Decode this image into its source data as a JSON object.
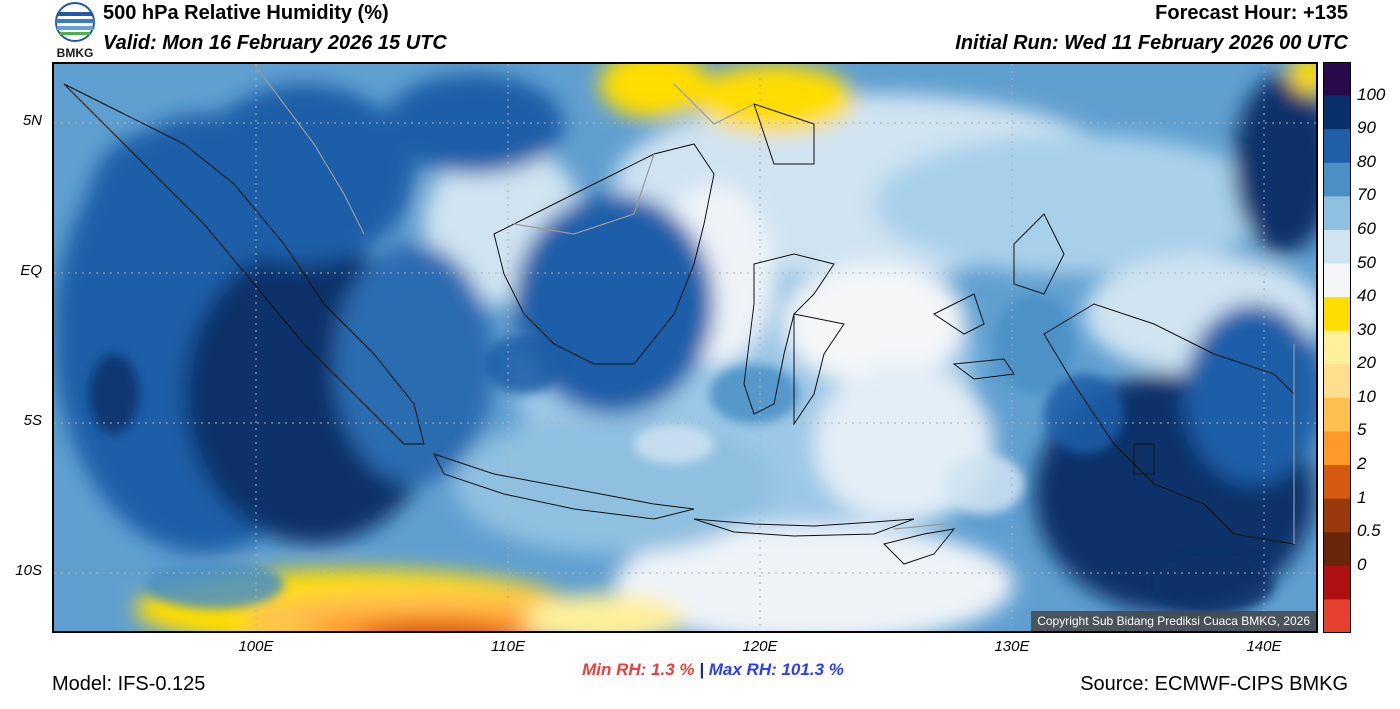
{
  "header": {
    "logo_text": "BMKG",
    "title": "500 hPa Relative Humidity (%)",
    "valid": "Valid: Mon 16 February 2026 15 UTC",
    "forecast_hour": "Forecast Hour: +135",
    "initial_run": "Initial Run: Wed 11 February 2026 00 UTC"
  },
  "map": {
    "copyright": "Copyright Sub Bidang Prediksi Cuaca BMKG, 2026",
    "lat_labels": [
      "5N",
      "EQ",
      "5S",
      "10S"
    ],
    "lon_labels": [
      "100E",
      "110E",
      "120E",
      "130E",
      "140E"
    ],
    "extent": {
      "lon_min": 92,
      "lon_max": 142,
      "lat_min": -12,
      "lat_max": 7
    }
  },
  "colorbar": {
    "labels": [
      "100",
      "90",
      "80",
      "70",
      "60",
      "50",
      "40",
      "30",
      "20",
      "10",
      "5",
      "2",
      "1",
      "0.5",
      "0"
    ],
    "colors": [
      "#2a0a4a",
      "#08306b",
      "#1f5fa8",
      "#4a90c6",
      "#8fc0e0",
      "#cfe3f1",
      "#f4f6f8",
      "#ffdd00",
      "#fff09a",
      "#ffdf8e",
      "#ffc04e",
      "#ff9a2a",
      "#d55a10",
      "#9a3a0c",
      "#6a2608",
      "#b01010",
      "#e84030"
    ]
  },
  "footer": {
    "min_rh": "Min RH:   1.3 %",
    "separator": "|",
    "max_rh": "Max RH: 101.3 %",
    "model": "Model: IFS-0.125",
    "source": "Source: ECMWF-CIPS BMKG"
  }
}
